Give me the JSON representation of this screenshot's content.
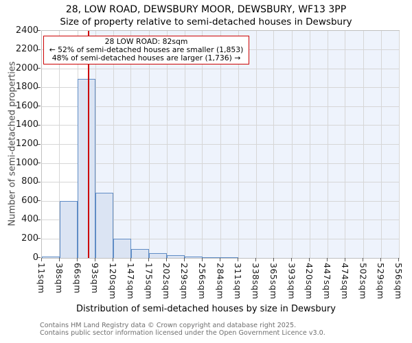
{
  "title": "28, LOW ROAD, DEWSBURY MOOR, DEWSBURY, WF13 3PP",
  "subtitle": "Size of property relative to semi-detached houses in Dewsbury",
  "annotation": {
    "line1": "28 LOW ROAD: 82sqm",
    "line2": "← 52% of semi-detached houses are smaller (1,853)",
    "line3": "48% of semi-detached houses are larger (1,736) →"
  },
  "footer": {
    "line1": "Contains HM Land Registry data © Crown copyright and database right 2025.",
    "line2": "Contains public sector information licensed under the Open Government Licence v3.0."
  },
  "chart_data": {
    "type": "bar",
    "title": "28, LOW ROAD, DEWSBURY MOOR, DEWSBURY, WF13 3PP — Size of property relative to semi-detached houses in Dewsbury",
    "xlabel": "Distribution of semi-detached houses by size in Dewsbury",
    "ylabel": "Number of semi-detached properties",
    "x_tick_labels": [
      "11sqm",
      "38sqm",
      "66sqm",
      "93sqm",
      "120sqm",
      "147sqm",
      "175sqm",
      "202sqm",
      "229sqm",
      "256sqm",
      "284sqm",
      "311sqm",
      "338sqm",
      "365sqm",
      "393sqm",
      "420sqm",
      "447sqm",
      "474sqm",
      "502sqm",
      "529sqm",
      "556sqm"
    ],
    "x_ticks_sqm": [
      11,
      38,
      66,
      93,
      120,
      147,
      175,
      202,
      229,
      256,
      284,
      311,
      338,
      365,
      393,
      420,
      447,
      474,
      502,
      529,
      556
    ],
    "x_range_sqm": [
      11,
      556
    ],
    "bins": [
      {
        "from_sqm": 11,
        "to_sqm": 38,
        "count": 12
      },
      {
        "from_sqm": 38,
        "to_sqm": 66,
        "count": 600
      },
      {
        "from_sqm": 66,
        "to_sqm": 93,
        "count": 1890
      },
      {
        "from_sqm": 93,
        "to_sqm": 120,
        "count": 690
      },
      {
        "from_sqm": 120,
        "to_sqm": 147,
        "count": 205
      },
      {
        "from_sqm": 147,
        "to_sqm": 175,
        "count": 95
      },
      {
        "from_sqm": 175,
        "to_sqm": 202,
        "count": 48
      },
      {
        "from_sqm": 202,
        "to_sqm": 229,
        "count": 27
      },
      {
        "from_sqm": 229,
        "to_sqm": 256,
        "count": 12
      },
      {
        "from_sqm": 256,
        "to_sqm": 284,
        "count": 5
      },
      {
        "from_sqm": 284,
        "to_sqm": 311,
        "count": 5
      },
      {
        "from_sqm": 311,
        "to_sqm": 338,
        "count": 0
      },
      {
        "from_sqm": 338,
        "to_sqm": 365,
        "count": 0
      },
      {
        "from_sqm": 365,
        "to_sqm": 393,
        "count": 0
      },
      {
        "from_sqm": 393,
        "to_sqm": 420,
        "count": 0
      },
      {
        "from_sqm": 420,
        "to_sqm": 447,
        "count": 0
      },
      {
        "from_sqm": 447,
        "to_sqm": 474,
        "count": 0
      },
      {
        "from_sqm": 474,
        "to_sqm": 502,
        "count": 0
      },
      {
        "from_sqm": 502,
        "to_sqm": 529,
        "count": 0
      },
      {
        "from_sqm": 529,
        "to_sqm": 556,
        "count": 0
      }
    ],
    "ylim": [
      0,
      2400
    ],
    "y_tick_step": 200,
    "grid": true,
    "legend": "none",
    "marker": {
      "label": "28 LOW ROAD",
      "value_sqm": 82,
      "pct_smaller": 52,
      "n_smaller": 1853,
      "pct_larger": 48,
      "n_larger": 1736
    },
    "colors": {
      "bar_fill": "#dbe4f3",
      "bar_edge": "#5f8cc5",
      "marker_line": "#cc0000",
      "annotation_border": "#cc0000",
      "shade_right_of_marker": "#eef3fc",
      "gridline": "#d6d6d6",
      "footer_text": "#6e6e6e"
    }
  }
}
